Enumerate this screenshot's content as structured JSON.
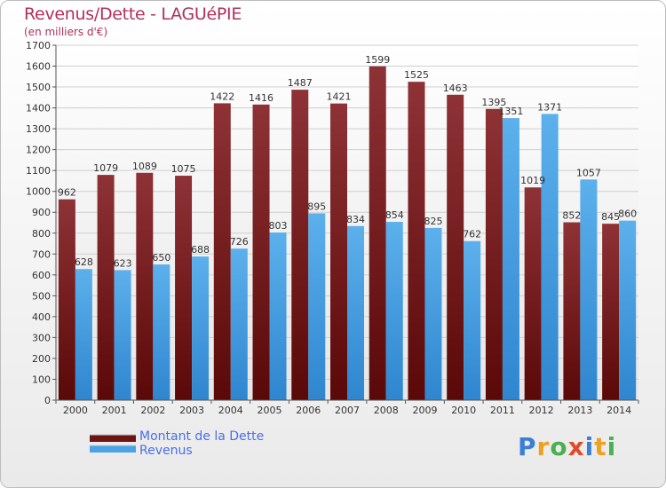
{
  "header": {
    "title": "Revenus/Dette - LAGUéPIE",
    "subtitle": "(en milliers d'€)"
  },
  "legend": {
    "debt_label": "Montant de la Dette",
    "revenue_label": "Revenus"
  },
  "logo": {
    "text": "Proxiti"
  },
  "colors": {
    "debt": "#8b2a2a",
    "revenue": "#4aa3e6",
    "title": "#b2305a",
    "legend_text": "#4a6ee8"
  },
  "chart_data": {
    "type": "bar",
    "categories": [
      "2000",
      "2001",
      "2002",
      "2003",
      "2004",
      "2005",
      "2006",
      "2007",
      "2008",
      "2009",
      "2010",
      "2011",
      "2012",
      "2013",
      "2014"
    ],
    "series": [
      {
        "name": "Montant de la Dette",
        "values": [
          962,
          1079,
          1089,
          1075,
          1422,
          1416,
          1487,
          1421,
          1599,
          1525,
          1463,
          1395,
          1019,
          852,
          845
        ]
      },
      {
        "name": "Revenus",
        "values": [
          628,
          623,
          650,
          688,
          726,
          803,
          895,
          834,
          854,
          825,
          762,
          1351,
          1371,
          1057,
          860
        ]
      }
    ],
    "yticks": [
      0,
      100,
      200,
      300,
      400,
      500,
      600,
      700,
      800,
      900,
      1000,
      1100,
      1200,
      1300,
      1400,
      1500,
      1600,
      1700
    ],
    "ylim": [
      0,
      1700
    ],
    "grid": true,
    "legend_position": "bottom-left"
  }
}
